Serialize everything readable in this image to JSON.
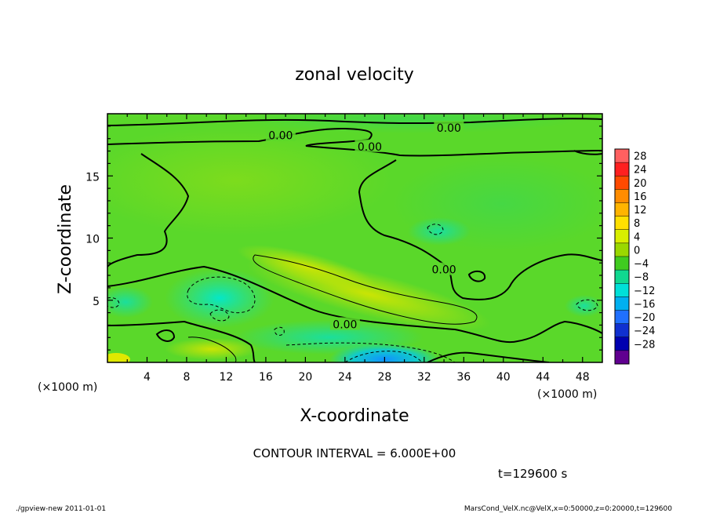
{
  "chart_data": {
    "type": "heatmap",
    "title": "zonal velocity",
    "xlabel": "X-coordinate",
    "ylabel": "Z-coordinate",
    "x_unit": "(×1000 m)",
    "y_unit": "(×1000 m)",
    "xlim": [
      0,
      50
    ],
    "ylim": [
      0,
      20
    ],
    "x_ticks": [
      4,
      8,
      12,
      16,
      20,
      24,
      28,
      32,
      36,
      40,
      44,
      48
    ],
    "y_ticks": [
      5,
      10,
      15
    ],
    "contour_interval": "CONTOUR INTERVAL = 6.000E+00",
    "time_label": "t=129600 s",
    "contour_labels": [
      {
        "text": "0.00",
        "x": 34.5,
        "y": 18.8
      },
      {
        "text": "0.00",
        "x": 17.5,
        "y": 18.2
      },
      {
        "text": "0.00",
        "x": 26.5,
        "y": 17.3
      },
      {
        "text": "0.00",
        "x": 34.0,
        "y": 7.4
      },
      {
        "text": "0.00",
        "x": 24.0,
        "y": 3.0
      }
    ],
    "colorbar": {
      "levels": [
        28,
        24,
        20,
        16,
        12,
        8,
        4,
        0,
        -4,
        -8,
        -12,
        -16,
        -20,
        -24,
        -28
      ],
      "labels": [
        "28",
        "24",
        "20",
        "16",
        "12",
        "8",
        "4",
        "0",
        "−4",
        "−8",
        "−12",
        "−16",
        "−20",
        "−24",
        "−28"
      ],
      "colors": [
        "#ff6060",
        "#ff2020",
        "#ff4a00",
        "#ff8c00",
        "#ffb400",
        "#ffe000",
        "#d8ee00",
        "#9ad800",
        "#40cc20",
        "#10d890",
        "#00e0d8",
        "#00b0f0",
        "#2070ff",
        "#1030d0",
        "#0000b0",
        "#600090"
      ]
    }
  },
  "footer": {
    "left": "./gpview-new  2011-01-01",
    "right": "MarsCond_VelX.nc@VelX,x=0:50000,z=0:20000,t=129600"
  },
  "colors": {
    "background": "#4ed020",
    "frame": "#000000"
  }
}
